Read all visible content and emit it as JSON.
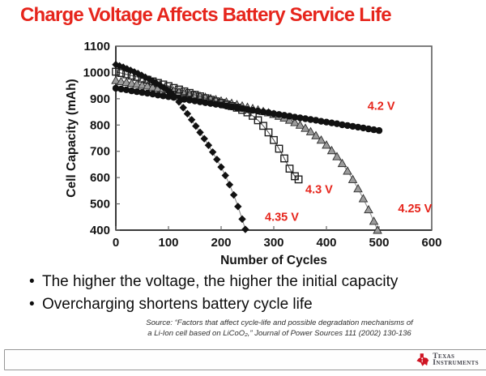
{
  "title": "Charge Voltage Affects Battery Service Life",
  "title_color": "#e6251c",
  "bullets": [
    {
      "dot": "•",
      "text": "The higher the voltage, the higher the initial capacity"
    },
    {
      "dot": "•",
      "text": "Overcharging shortens battery cycle life"
    }
  ],
  "source": {
    "line1": "Source: “Factors that affect cycle-life and possible degradation mechanisms of",
    "line2": "a Li-Ion cell based on LiCoO₂,” Journal of Power Sources 111 (2002) 130-136"
  },
  "footer": {
    "brand_line1": "Texas",
    "brand_line2": "Instruments",
    "logo_color": "#cf1423"
  },
  "chart_data": {
    "type": "line",
    "title": "",
    "xlabel": "Number of Cycles",
    "ylabel": "Cell Capacity (mAh)",
    "xlim": [
      0,
      600
    ],
    "ylim": [
      400,
      1100
    ],
    "xticks": [
      0,
      100,
      200,
      300,
      400,
      500,
      600
    ],
    "yticks": [
      400,
      500,
      600,
      700,
      800,
      900,
      1000,
      1100
    ],
    "grid": false,
    "legend": "none (in-plot red annotations)",
    "annotation_color": "#e6251c",
    "annotations": [
      {
        "text": "4.2 V",
        "x": 478,
        "y": 858
      },
      {
        "text": "4.25 V",
        "x": 536,
        "y": 468
      },
      {
        "text": "4.3 V",
        "x": 360,
        "y": 540
      },
      {
        "text": "4.35 V",
        "x": 283,
        "y": 436
      }
    ],
    "series": [
      {
        "name": "4.25 V",
        "marker": "triangle",
        "marker_fill": "#9b9b9b",
        "marker_stroke": "#2a2a2a",
        "line_color": "#8f8f8f",
        "points": [
          [
            0,
            970
          ],
          [
            10,
            966
          ],
          [
            20,
            963
          ],
          [
            30,
            959
          ],
          [
            40,
            956
          ],
          [
            50,
            952
          ],
          [
            60,
            949
          ],
          [
            70,
            945
          ],
          [
            80,
            941
          ],
          [
            90,
            938
          ],
          [
            100,
            934
          ],
          [
            110,
            930
          ],
          [
            120,
            926
          ],
          [
            130,
            922
          ],
          [
            140,
            918
          ],
          [
            150,
            914
          ],
          [
            160,
            910
          ],
          [
            170,
            906
          ],
          [
            180,
            901
          ],
          [
            190,
            897
          ],
          [
            200,
            892
          ],
          [
            210,
            888
          ],
          [
            220,
            883
          ],
          [
            230,
            878
          ],
          [
            240,
            873
          ],
          [
            250,
            868
          ],
          [
            260,
            863
          ],
          [
            270,
            858
          ],
          [
            280,
            852
          ],
          [
            290,
            847
          ],
          [
            300,
            841
          ],
          [
            310,
            834
          ],
          [
            320,
            827
          ],
          [
            330,
            819
          ],
          [
            340,
            810
          ],
          [
            350,
            800
          ],
          [
            360,
            788
          ],
          [
            370,
            775
          ],
          [
            380,
            760
          ],
          [
            390,
            743
          ],
          [
            400,
            724
          ],
          [
            410,
            703
          ],
          [
            420,
            680
          ],
          [
            430,
            654
          ],
          [
            440,
            625
          ],
          [
            450,
            593
          ],
          [
            460,
            558
          ],
          [
            470,
            520
          ],
          [
            480,
            478
          ],
          [
            490,
            434
          ],
          [
            497,
            400
          ]
        ]
      },
      {
        "name": "4.3 V",
        "marker": "square-open",
        "marker_fill": "none",
        "marker_stroke": "#1e1e1e",
        "line_color": "#5a5a5a",
        "points": [
          [
            0,
            1003
          ],
          [
            10,
            998
          ],
          [
            20,
            993
          ],
          [
            30,
            988
          ],
          [
            40,
            983
          ],
          [
            50,
            977
          ],
          [
            60,
            972
          ],
          [
            70,
            966
          ],
          [
            80,
            960
          ],
          [
            90,
            954
          ],
          [
            100,
            948
          ],
          [
            110,
            941
          ],
          [
            120,
            935
          ],
          [
            130,
            928
          ],
          [
            140,
            922
          ],
          [
            150,
            915
          ],
          [
            160,
            909
          ],
          [
            170,
            902
          ],
          [
            180,
            896
          ],
          [
            190,
            890
          ],
          [
            200,
            884
          ],
          [
            210,
            878
          ],
          [
            220,
            872
          ],
          [
            230,
            866
          ],
          [
            240,
            858
          ],
          [
            250,
            848
          ],
          [
            260,
            835
          ],
          [
            270,
            818
          ],
          [
            280,
            797
          ],
          [
            290,
            772
          ],
          [
            300,
            743
          ],
          [
            310,
            710
          ],
          [
            320,
            673
          ],
          [
            330,
            634
          ],
          [
            340,
            605
          ],
          [
            347,
            593
          ]
        ]
      },
      {
        "name": "4.2 V",
        "marker": "circle",
        "marker_fill": "#111111",
        "marker_stroke": "none",
        "line_color": "#111111",
        "points": [
          [
            0,
            940
          ],
          [
            10,
            937
          ],
          [
            20,
            934
          ],
          [
            30,
            930
          ],
          [
            40,
            927
          ],
          [
            50,
            924
          ],
          [
            60,
            921
          ],
          [
            70,
            918
          ],
          [
            80,
            914
          ],
          [
            90,
            911
          ],
          [
            100,
            908
          ],
          [
            110,
            905
          ],
          [
            120,
            901
          ],
          [
            130,
            898
          ],
          [
            140,
            895
          ],
          [
            150,
            892
          ],
          [
            160,
            888
          ],
          [
            170,
            885
          ],
          [
            180,
            882
          ],
          [
            190,
            879
          ],
          [
            200,
            876
          ],
          [
            210,
            872
          ],
          [
            220,
            869
          ],
          [
            230,
            866
          ],
          [
            240,
            863
          ],
          [
            250,
            859
          ],
          [
            260,
            856
          ],
          [
            270,
            853
          ],
          [
            280,
            850
          ],
          [
            290,
            847
          ],
          [
            300,
            843
          ],
          [
            310,
            840
          ],
          [
            320,
            837
          ],
          [
            330,
            834
          ],
          [
            340,
            830
          ],
          [
            350,
            827
          ],
          [
            360,
            824
          ],
          [
            370,
            821
          ],
          [
            380,
            818
          ],
          [
            390,
            814
          ],
          [
            400,
            811
          ],
          [
            410,
            808
          ],
          [
            420,
            805
          ],
          [
            430,
            801
          ],
          [
            440,
            798
          ],
          [
            450,
            795
          ],
          [
            460,
            792
          ],
          [
            470,
            789
          ],
          [
            480,
            785
          ],
          [
            490,
            782
          ],
          [
            500,
            779
          ]
        ]
      },
      {
        "name": "4.35 V",
        "marker": "diamond",
        "marker_fill": "#111111",
        "marker_stroke": "none",
        "line_color": "#8f8f8f",
        "points": [
          [
            0,
            1030
          ],
          [
            7,
            1025
          ],
          [
            14,
            1020
          ],
          [
            21,
            1014
          ],
          [
            28,
            1008
          ],
          [
            35,
            1002
          ],
          [
            42,
            996
          ],
          [
            49,
            989
          ],
          [
            56,
            982
          ],
          [
            63,
            975
          ],
          [
            70,
            967
          ],
          [
            77,
            959
          ],
          [
            84,
            951
          ],
          [
            91,
            942
          ],
          [
            98,
            933
          ],
          [
            105,
            922
          ],
          [
            112,
            908
          ],
          [
            120,
            888
          ],
          [
            128,
            866
          ],
          [
            136,
            843
          ],
          [
            144,
            820
          ],
          [
            152,
            796
          ],
          [
            160,
            772
          ],
          [
            168,
            748
          ],
          [
            176,
            723
          ],
          [
            184,
            697
          ],
          [
            192,
            669
          ],
          [
            200,
            640
          ],
          [
            208,
            608
          ],
          [
            216,
            573
          ],
          [
            224,
            534
          ],
          [
            232,
            490
          ],
          [
            240,
            442
          ],
          [
            246,
            403
          ]
        ]
      }
    ]
  }
}
